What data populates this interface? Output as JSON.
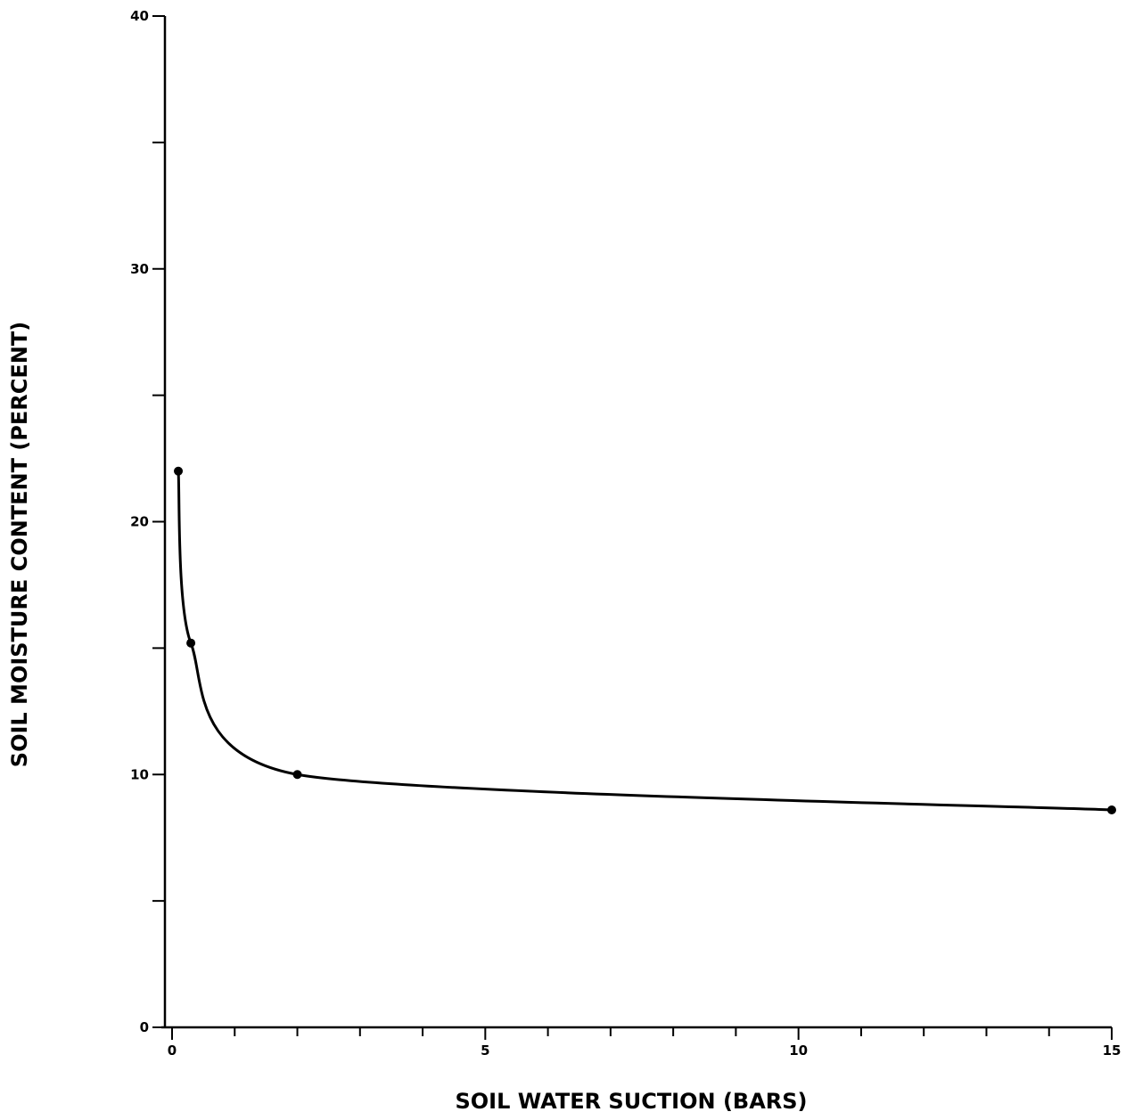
{
  "chart_data": {
    "type": "line",
    "title": "",
    "xlabel": "SOIL WATER SUCTION (BARS)",
    "ylabel": "SOIL MOISTURE CONTENT (PERCENT)",
    "xlim": [
      0,
      15
    ],
    "ylim": [
      0,
      40
    ],
    "x_major_ticks": [
      0,
      5,
      10,
      15
    ],
    "x_tick_labels": [
      "0",
      "5",
      "10",
      "15"
    ],
    "x_minor_step": 1,
    "y_major_ticks": [
      0,
      10,
      20,
      30,
      40
    ],
    "y_tick_labels": [
      "0",
      "10",
      "20",
      "30",
      "40"
    ],
    "y_minor_step": 5,
    "grid": false,
    "legend": "none",
    "line_color": "#000000",
    "series": [
      {
        "x": [
          0.1,
          0.3,
          2.0,
          15.0
        ],
        "y": [
          22.0,
          15.2,
          10.0,
          8.6
        ]
      }
    ]
  }
}
